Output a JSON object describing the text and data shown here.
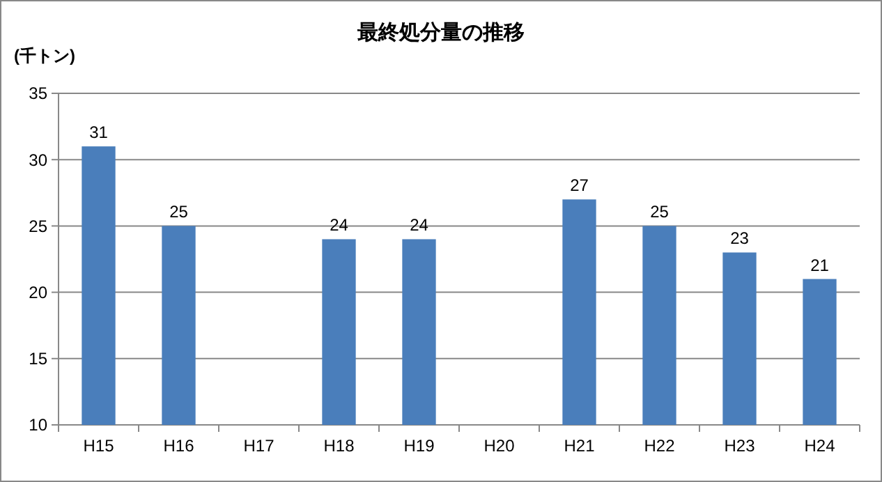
{
  "chart_data": {
    "type": "bar",
    "title": "最終処分量の推移",
    "ylabel": "(千トン)",
    "categories": [
      "H15",
      "H16",
      "H17",
      "H18",
      "H19",
      "H20",
      "H21",
      "H22",
      "H23",
      "H24"
    ],
    "values": [
      31,
      25,
      null,
      24,
      24,
      null,
      27,
      25,
      23,
      21
    ],
    "color": "#4a7ebb",
    "ylim": [
      10,
      35
    ],
    "yticks": [
      10,
      15,
      20,
      25,
      30,
      35
    ],
    "grid": "y",
    "data_labels": true
  }
}
